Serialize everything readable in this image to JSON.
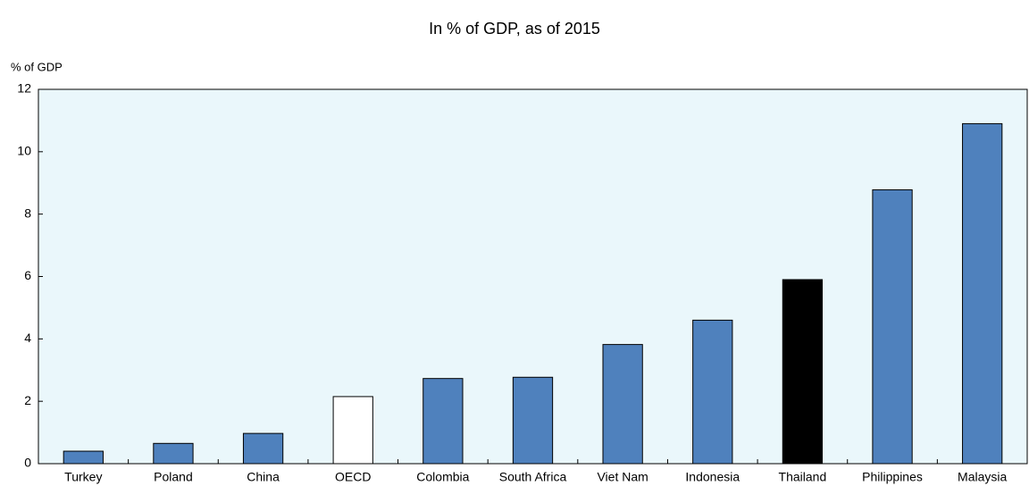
{
  "chart_data": {
    "type": "bar",
    "title": "In % of GDP, as of 2015",
    "y_label": "% of GDP",
    "categories": [
      "Turkey",
      "Poland",
      "China",
      "OECD",
      "Colombia",
      "South Africa",
      "Viet Nam",
      "Indonesia",
      "Thailand",
      "Philippines",
      "Malaysia"
    ],
    "values": [
      0.4,
      0.65,
      0.97,
      2.15,
      2.73,
      2.77,
      3.82,
      4.6,
      5.9,
      8.78,
      10.9
    ],
    "colors": [
      "#4f81bd",
      "#4f81bd",
      "#4f81bd",
      "#ffffff",
      "#4f81bd",
      "#4f81bd",
      "#4f81bd",
      "#4f81bd",
      "#000000",
      "#4f81bd",
      "#4f81bd"
    ],
    "ylim": [
      0,
      12
    ],
    "yticks": [
      0,
      2,
      4,
      6,
      8,
      10,
      12
    ],
    "grid": false
  }
}
